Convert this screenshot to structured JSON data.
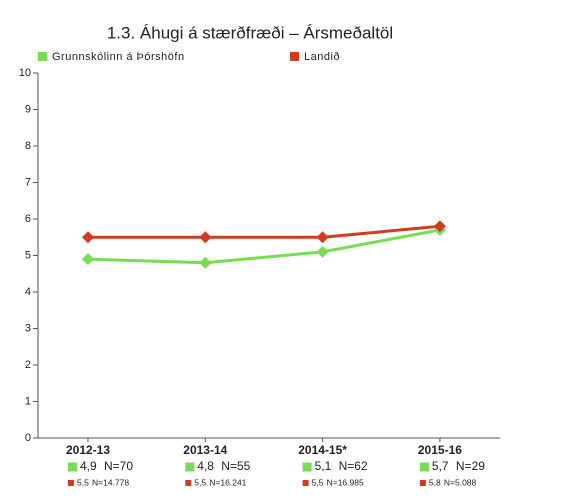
{
  "chart_data": {
    "type": "line",
    "title": "1.3. Áhugi á stærðfræði – Ársmeðaltöl",
    "categories": [
      "2012-13",
      "2013-14",
      "2014-15*",
      "2015-16"
    ],
    "series": [
      {
        "name": "Grunnskólinn á Þórshöfn",
        "color": "#77dd55",
        "values": [
          4.9,
          4.8,
          5.1,
          5.7
        ],
        "value_labels": [
          "4,9",
          "4,8",
          "5,1",
          "5,7"
        ],
        "counts": [
          "N=70",
          "N=55",
          "N=62",
          "N=29"
        ]
      },
      {
        "name": "Landið",
        "color": "#d23c1e",
        "values": [
          5.5,
          5.5,
          5.5,
          5.8
        ],
        "value_labels": [
          "5,5",
          "5,5",
          "5,5",
          "5,8"
        ],
        "counts": [
          "N=14.778",
          "N=16.241",
          "N=16.985",
          "N=5.088"
        ]
      }
    ],
    "ylim": [
      0,
      10
    ],
    "yticks": [
      0,
      1,
      2,
      3,
      4,
      5,
      6,
      7,
      8,
      9,
      10
    ],
    "grid": false
  }
}
